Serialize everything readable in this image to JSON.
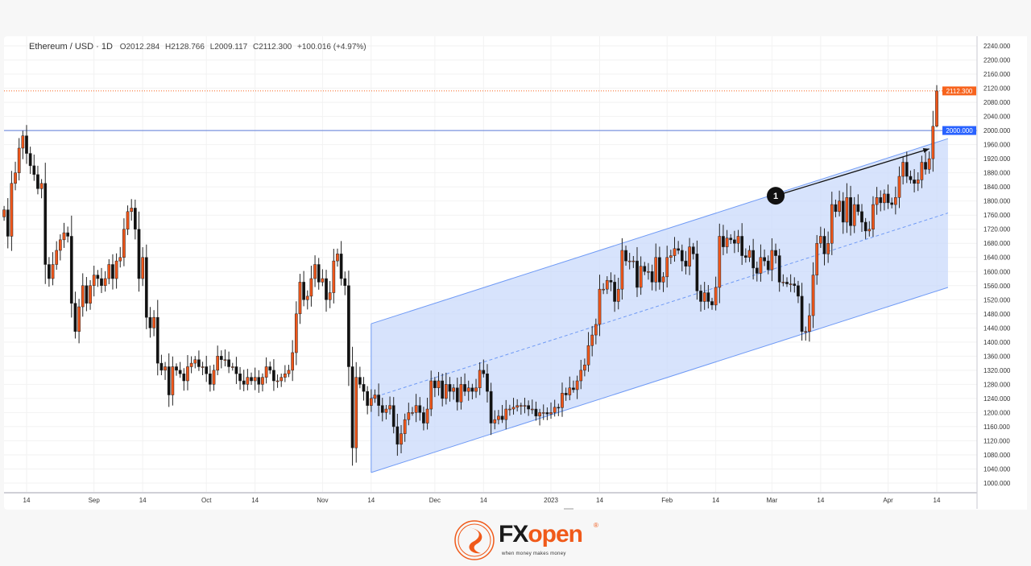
{
  "header": {
    "symbol": "Ethereum / USD · 1D",
    "open": "O2012.284",
    "high": "H2128.766",
    "low": "L2009.117",
    "close": "C2112.300",
    "change": "+100.016 (+4.97%)"
  },
  "brand": {
    "logo_text_1": "FX",
    "logo_text_2": "open",
    "registered": "®",
    "tagline": "when money makes money"
  },
  "colors": {
    "bull": "#f0561a",
    "bear": "#111111",
    "channel_fill": "#c9d9fb",
    "channel_line": "#6f9af5",
    "level_line": "#5b7bd8",
    "price_label": "#f7631d",
    "level_label": "#2962ff"
  },
  "chart_data": {
    "type": "candlestick",
    "title": "Ethereum / USD · 1D",
    "start_date": "2022-08-08",
    "end_date": "2023-04-14",
    "closes": [
      1775,
      1700,
      1850,
      1880,
      1950,
      1985,
      1935,
      1900,
      1875,
      1835,
      1850,
      1620,
      1580,
      1620,
      1660,
      1690,
      1710,
      1700,
      1510,
      1430,
      1500,
      1560,
      1510,
      1560,
      1590,
      1580,
      1560,
      1580,
      1620,
      1580,
      1630,
      1640,
      1720,
      1770,
      1780,
      1720,
      1580,
      1640,
      1470,
      1440,
      1470,
      1340,
      1320,
      1330,
      1250,
      1330,
      1320,
      1310,
      1290,
      1330,
      1340,
      1350,
      1330,
      1330,
      1310,
      1280,
      1320,
      1360,
      1350,
      1350,
      1330,
      1330,
      1310,
      1290,
      1280,
      1300,
      1290,
      1300,
      1280,
      1300,
      1330,
      1320,
      1290,
      1290,
      1300,
      1310,
      1320,
      1370,
      1480,
      1570,
      1520,
      1530,
      1580,
      1620,
      1570,
      1580,
      1520,
      1540,
      1630,
      1650,
      1580,
      1560,
      1330,
      1100,
      1300,
      1280,
      1260,
      1220,
      1240,
      1250,
      1220,
      1200,
      1210,
      1220,
      1160,
      1110,
      1140,
      1180,
      1200,
      1200,
      1220,
      1200,
      1170,
      1210,
      1290,
      1270,
      1290,
      1240,
      1280,
      1260,
      1270,
      1230,
      1280,
      1260,
      1270,
      1260,
      1270,
      1320,
      1310,
      1260,
      1170,
      1180,
      1190,
      1180,
      1210,
      1210,
      1215,
      1220,
      1220,
      1220,
      1210,
      1210,
      1190,
      1200,
      1200,
      1196,
      1200,
      1215,
      1214,
      1255,
      1250,
      1270,
      1265,
      1290,
      1320,
      1335,
      1390,
      1420,
      1450,
      1550,
      1550,
      1575,
      1570,
      1515,
      1550,
      1660,
      1630,
      1630,
      1630,
      1555,
      1615,
      1600,
      1600,
      1570,
      1640,
      1570,
      1585,
      1640,
      1645,
      1665,
      1660,
      1630,
      1615,
      1670,
      1650,
      1545,
      1515,
      1540,
      1515,
      1505,
      1555,
      1700,
      1670,
      1695,
      1690,
      1680,
      1700,
      1645,
      1640,
      1660,
      1610,
      1595,
      1640,
      1630,
      1605,
      1660,
      1645,
      1570,
      1570,
      1565,
      1565,
      1560,
      1530,
      1430,
      1430,
      1475,
      1590,
      1680,
      1700,
      1650,
      1680,
      1790,
      1770,
      1800,
      1740,
      1810,
      1730,
      1790,
      1770,
      1740,
      1715,
      1720,
      1790,
      1810,
      1795,
      1820,
      1795,
      1790,
      1810,
      1870,
      1910,
      1870,
      1860,
      1850,
      1860,
      1910,
      1890,
      1920,
      2012,
      2112.3
    ],
    "last_candle": {
      "open": 2012.284,
      "high": 2128.766,
      "low": 2009.117,
      "close": 2112.3
    },
    "ylim": [
      1000,
      2240
    ],
    "y_ticks": [
      "2240.000",
      "2200.000",
      "2160.000",
      "2120.000",
      "2080.000",
      "2040.000",
      "2000.000",
      "1960.000",
      "1920.000",
      "1880.000",
      "1840.000",
      "1800.000",
      "1760.000",
      "1720.000",
      "1680.000",
      "1640.000",
      "1600.000",
      "1560.000",
      "1520.000",
      "1480.000",
      "1440.000",
      "1400.000",
      "1360.000",
      "1320.000",
      "1280.000",
      "1240.000",
      "1200.000",
      "1160.000",
      "1120.000",
      "1080.000",
      "1040.000",
      "1000.000"
    ],
    "x_ticks": [
      {
        "date": "2022-08-14",
        "label": "14"
      },
      {
        "date": "2022-09-01",
        "label": "Sep"
      },
      {
        "date": "2022-09-14",
        "label": "14"
      },
      {
        "date": "2022-10-01",
        "label": "Oct"
      },
      {
        "date": "2022-10-14",
        "label": "14"
      },
      {
        "date": "2022-11-01",
        "label": "Nov"
      },
      {
        "date": "2022-11-14",
        "label": "14"
      },
      {
        "date": "2022-12-01",
        "label": "Dec"
      },
      {
        "date": "2022-12-14",
        "label": "14"
      },
      {
        "date": "2023-01-01",
        "label": "2023"
      },
      {
        "date": "2023-01-14",
        "label": "14"
      },
      {
        "date": "2023-02-01",
        "label": "Feb"
      },
      {
        "date": "2023-02-14",
        "label": "14"
      },
      {
        "date": "2023-03-01",
        "label": "Mar"
      },
      {
        "date": "2023-03-14",
        "label": "14"
      },
      {
        "date": "2023-04-01",
        "label": "Apr"
      },
      {
        "date": "2023-04-14",
        "label": "14"
      }
    ],
    "horizontal_level": {
      "price": 2000,
      "label": "2000.000"
    },
    "last_price": {
      "price": 2112.3,
      "label": "2112.300"
    },
    "channel": {
      "start_date": "2022-11-14",
      "end_date": "2023-04-17",
      "lower": [
        1030,
        1555
      ],
      "upper": [
        1452,
        1977
      ]
    },
    "annotation": {
      "label": "1",
      "date": "2023-03-02",
      "price": 1815,
      "arrow_to_date": "2023-04-12",
      "arrow_to_price": 1948
    },
    "grid": true
  }
}
